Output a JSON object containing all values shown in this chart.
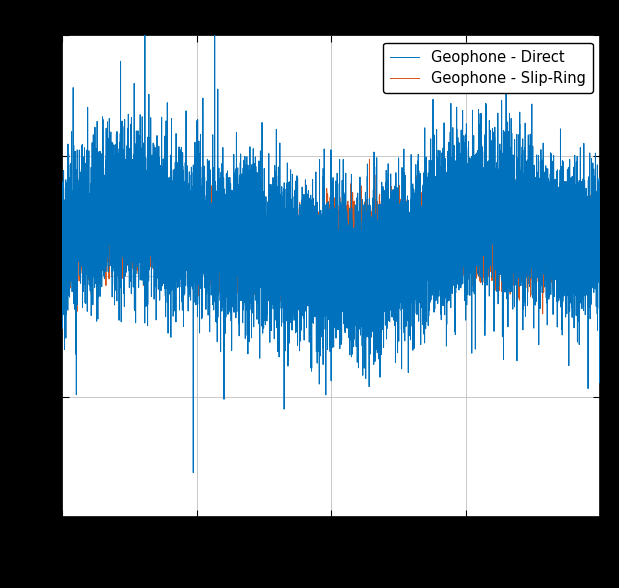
{
  "title": "",
  "xlabel": "",
  "ylabel": "",
  "legend": [
    "Geophone - Direct",
    "Geophone - Slip-Ring"
  ],
  "colors": [
    "#0072BD",
    "#D95319"
  ],
  "line_width": 0.7,
  "seed": 42,
  "n_samples": 10000,
  "direct_noise_std": 0.22,
  "slipring_noise_std": 0.1,
  "ylim": [
    -1.6,
    1.2
  ],
  "xlim": [
    0,
    10000
  ],
  "background_color": "#ffffff",
  "outer_background": "#000000",
  "grid_color": "#c0c0c0",
  "legend_fontsize": 10.5,
  "figsize": [
    6.19,
    5.88
  ],
  "dpi": 100
}
